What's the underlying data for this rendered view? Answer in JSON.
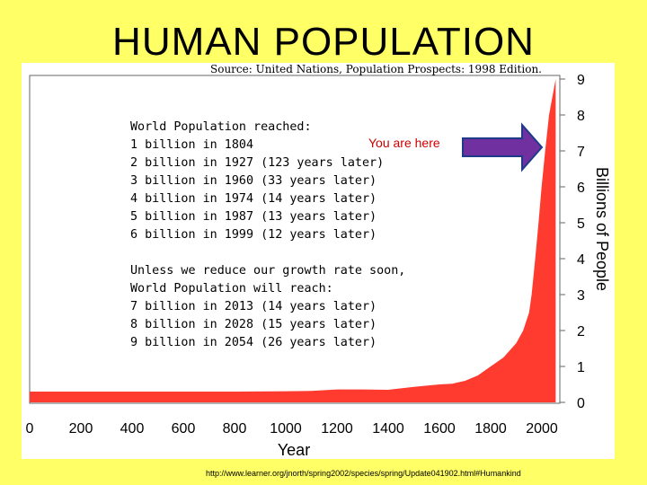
{
  "slide": {
    "title": "HUMAN POPULATION",
    "source_note": "Source: United Nations, Population Prospects: 1998 Edition.",
    "footer_url": "http://www.learner.org/jnorth/spring2002/species/spring/Update041902.html#Humankind"
  },
  "chart_data": {
    "type": "area",
    "title": "",
    "xlabel": "Year",
    "ylabel": "Billions of People",
    "xlim": [
      0,
      2050
    ],
    "ylim": [
      0,
      9
    ],
    "x_ticks": [
      "0",
      "200",
      "400",
      "600",
      "800",
      "1000",
      "1200",
      "1400",
      "1600",
      "1800",
      "2000"
    ],
    "y_ticks": [
      "0",
      "1",
      "2",
      "3",
      "4",
      "5",
      "6",
      "7",
      "8",
      "9"
    ],
    "grid": false,
    "fill_color": "#ff3b30",
    "x": [
      0,
      200,
      400,
      600,
      800,
      1000,
      1100,
      1200,
      1300,
      1400,
      1500,
      1600,
      1650,
      1700,
      1750,
      1800,
      1850,
      1900,
      1927,
      1950,
      1960,
      1974,
      1987,
      1999,
      2013,
      2028,
      2054
    ],
    "values": [
      0.3,
      0.3,
      0.3,
      0.3,
      0.3,
      0.31,
      0.32,
      0.36,
      0.36,
      0.35,
      0.43,
      0.5,
      0.52,
      0.6,
      0.75,
      1.0,
      1.25,
      1.65,
      2.0,
      2.5,
      3.0,
      4.0,
      5.0,
      6.0,
      7.0,
      8.0,
      9.0
    ],
    "annotations": {
      "reached_lines": [
        "World Population reached:",
        "1 billion in 1804",
        "2 billion in 1927 (123 years later)",
        "3 billion in 1960 (33 years later)",
        "4 billion in 1974 (14 years later)",
        "5 billion in 1987 (13 years later)",
        "6 billion in 1999 (12 years later)"
      ],
      "projection_lines": [
        "Unless we reduce our growth rate soon,",
        "World Population will reach:",
        "7 billion in 2013 (14 years later)",
        "8 billion in 2028 (15 years later)",
        "9 billion in 2054 (26 years later)"
      ],
      "you_are_here": {
        "label": "You are here",
        "label_color": "#cc0000",
        "arrow_color": "#7030a0"
      }
    }
  }
}
